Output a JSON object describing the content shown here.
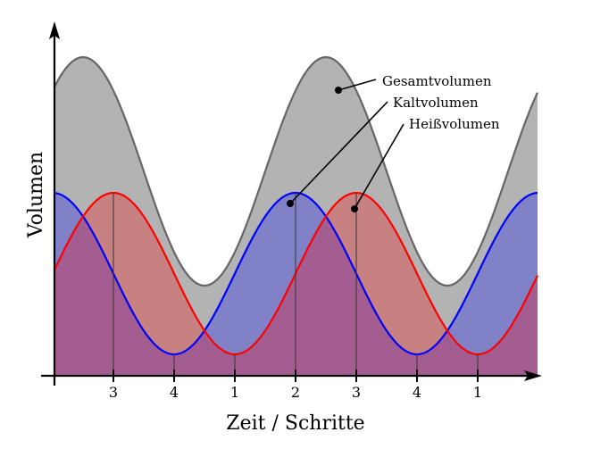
{
  "chart_data": {
    "type": "area",
    "title": "",
    "xlabel": "Zeit / Schritte",
    "ylabel": "Volumen",
    "x_tick_labels": [
      "3",
      "4",
      "1",
      "2",
      "3",
      "4",
      "1"
    ],
    "series": [
      {
        "name": "Kaltvolumen",
        "color": "#0000ff",
        "form": "sinusoid",
        "period_steps": 4,
        "peak_at_step": "2",
        "mean": 1.0,
        "amplitude": 0.79
      },
      {
        "name": "Heißvolumen",
        "color": "#ff0000",
        "form": "sinusoid",
        "period_steps": 4,
        "peak_at_step": "3",
        "mean": 1.0,
        "amplitude": 0.79
      },
      {
        "name": "Gesamtvolumen",
        "color": "#666666",
        "form": "sum of Kaltvolumen and Heißvolumen"
      }
    ],
    "annotations": [
      "Gesamtvolumen",
      "Kaltvolumen",
      "Heißvolumen"
    ]
  }
}
